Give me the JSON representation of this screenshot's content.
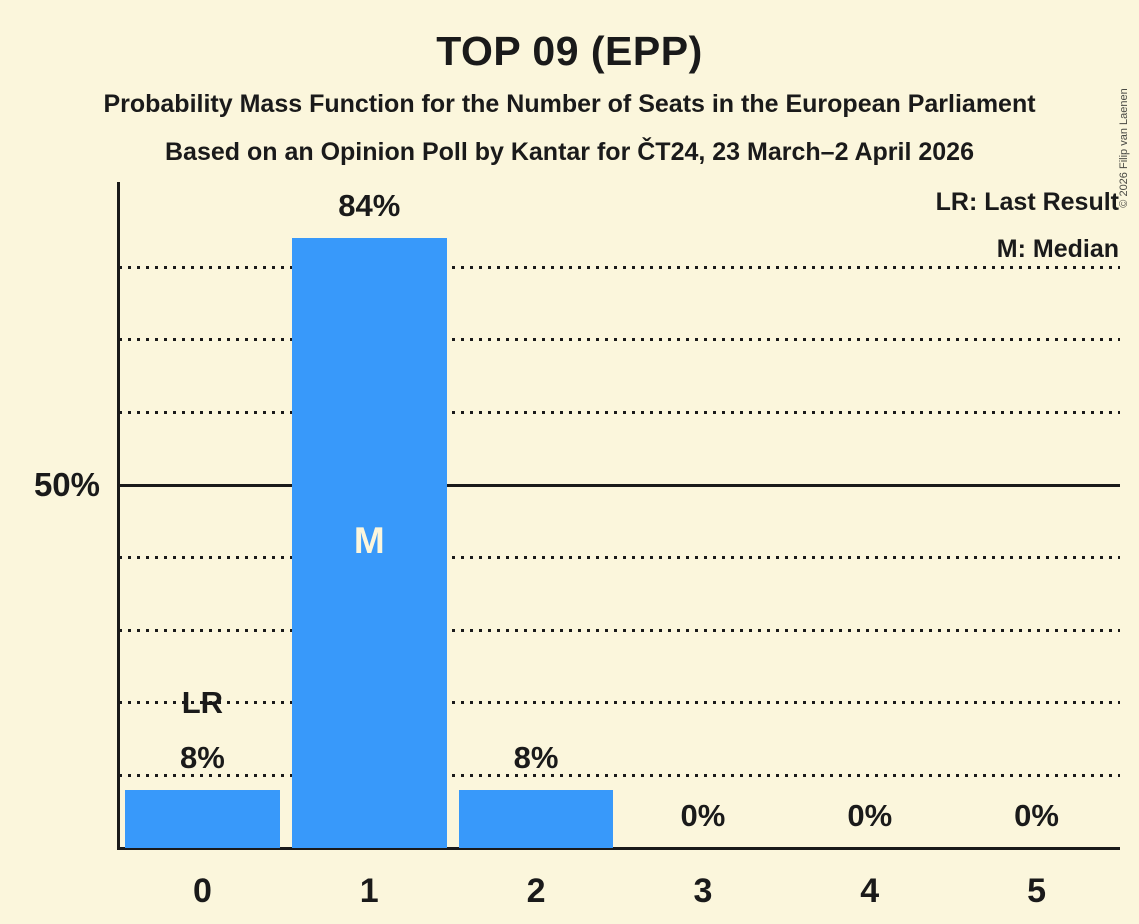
{
  "title": "TOP 09 (EPP)",
  "subtitle": "Probability Mass Function for the Number of Seats in the European Parliament",
  "source_line": "Based on an Opinion Poll by Kantar for ČT24, 23 March–2 April 2026",
  "copyright": "© 2026 Filip van Laenen",
  "legend": {
    "lr": "LR: Last Result",
    "m": "M: Median"
  },
  "y_axis": {
    "tick_label": "50%"
  },
  "chart_data": {
    "type": "bar",
    "title": "TOP 09 (EPP)",
    "categories": [
      "0",
      "1",
      "2",
      "3",
      "4",
      "5"
    ],
    "values": [
      8,
      84,
      8,
      0,
      0,
      0
    ],
    "value_labels": [
      "8%",
      "84%",
      "8%",
      "0%",
      "0%",
      "0%"
    ],
    "xlabel": "",
    "ylabel": "",
    "ylim": [
      0,
      92
    ],
    "y_gridlines_dotted_pct": [
      10,
      20,
      30,
      40,
      60,
      70,
      80
    ],
    "y_gridlines_solid_pct": [
      50
    ],
    "y_tick_labels": [
      {
        "pct": 50,
        "label": "50%"
      }
    ],
    "annotations": [
      {
        "category": "0",
        "text": "LR",
        "placement": "above-bar"
      },
      {
        "category": "1",
        "text": "M",
        "placement": "inside-bar"
      }
    ],
    "legend_position": "top-right",
    "grid": "horizontal dotted, solid at 50%",
    "bar_color": "#3899FA",
    "background_color": "#FBF6DC",
    "text_color": "#1A1A1A"
  }
}
